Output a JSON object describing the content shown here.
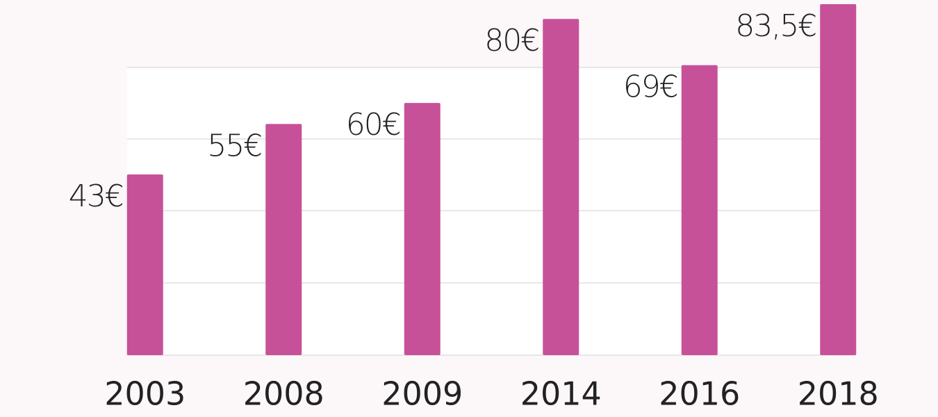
{
  "chart_data": {
    "type": "bar",
    "categories": [
      "2003",
      "2008",
      "2009",
      "2014",
      "2016",
      "2018"
    ],
    "values": [
      43,
      55,
      60,
      80,
      69,
      83.5
    ],
    "value_labels": [
      "43€",
      "55€",
      "60€",
      "80€",
      "69€",
      "83,5€"
    ],
    "color": "#c75199",
    "ylim": [
      0,
      84
    ]
  }
}
